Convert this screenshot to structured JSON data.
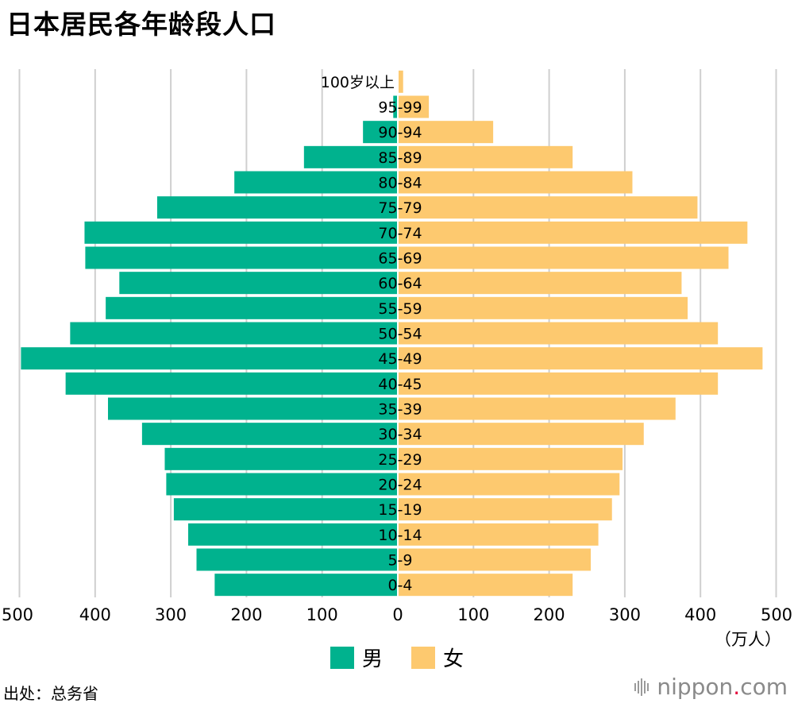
{
  "title": "日本居民各年龄段人口",
  "chart_data": {
    "type": "bar",
    "orientation": "horizontal",
    "layout": "population pyramid",
    "categories": [
      "0-4",
      "5-9",
      "10-14",
      "15-19",
      "20-24",
      "25-29",
      "30-34",
      "35-39",
      "40-45",
      "45-49",
      "50-54",
      "55-59",
      "60-64",
      "65-69",
      "70-74",
      "75-79",
      "80-84",
      "85-89",
      "90-94",
      "95-99",
      "100岁以上"
    ],
    "series": [
      {
        "name": "男",
        "color": "#00b28e",
        "values": [
          242,
          266,
          277,
          296,
          306,
          308,
          338,
          383,
          439,
          498,
          433,
          386,
          368,
          413,
          414,
          318,
          216,
          124,
          46,
          6,
          1
        ]
      },
      {
        "name": "女",
        "color": "#fdc96f",
        "values": [
          230,
          254,
          264,
          282,
          292,
          296,
          324,
          366,
          422,
          481,
          422,
          382,
          374,
          436,
          461,
          395,
          309,
          230,
          125,
          40,
          6
        ]
      }
    ],
    "x_ticks": [
      "500",
      "400",
      "300",
      "200",
      "100",
      "0",
      "100",
      "200",
      "300",
      "400",
      "500"
    ],
    "x_range": [
      0,
      500
    ],
    "unit": "（万人）",
    "grid": true,
    "legend_position": "bottom"
  },
  "source": "出处：总务省",
  "brand": {
    "name": "nippon",
    "dot": ".",
    "suffix": "com"
  }
}
